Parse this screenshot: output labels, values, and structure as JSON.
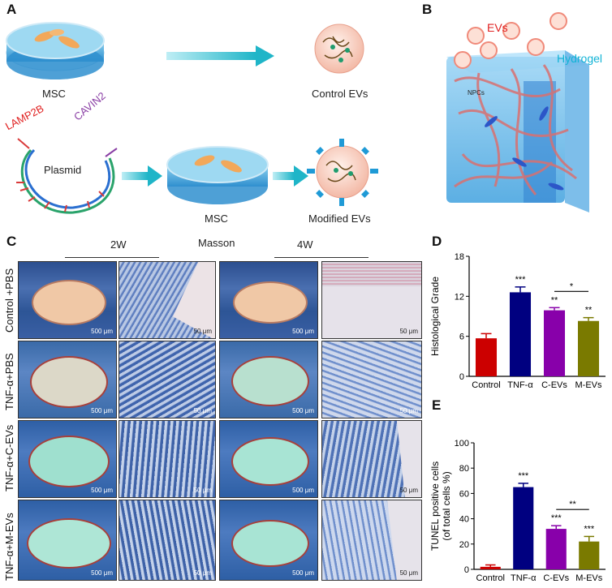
{
  "panel_a": {
    "label": "A",
    "msc_top": "MSC",
    "control_evs": "Control EVs",
    "lamp2b": "LAMP2B",
    "cavin2": "CAVIN2",
    "plasmid": "Plasmid",
    "msc_bottom": "MSC",
    "modified_evs": "Modified EVs"
  },
  "panel_b": {
    "label": "B",
    "evs": "EVs",
    "hydrogel": "Hydrogel",
    "npcs": "NPCs"
  },
  "panel_c": {
    "label": "C",
    "stain": "Masson",
    "week_left": "2W",
    "week_right": "4W",
    "rows": [
      "Control +PBS",
      "TNF-α+PBS",
      "TNF-α+C-EVs",
      "TNF-α+M-EVs"
    ],
    "scale_500": "500 μm",
    "scale_50": "50 μm"
  },
  "panel_d": {
    "label": "D"
  },
  "panel_e": {
    "label": "E"
  },
  "colors": {
    "control": "#cc0000",
    "tnf": "#000080",
    "cevs": "#8800aa",
    "mevs": "#7a7a00"
  },
  "chart_data": [
    {
      "type": "bar",
      "ylabel": "Histological Grade",
      "categories": [
        "Control",
        "TNF-α",
        "C-EVs",
        "M-EVs"
      ],
      "values": [
        5.7,
        12.6,
        9.9,
        8.3
      ],
      "errors": [
        0.7,
        0.8,
        0.4,
        0.5
      ],
      "ylim": [
        0,
        18
      ],
      "yticks": [
        0,
        6,
        12,
        18
      ],
      "significance": [
        "",
        "***",
        "**",
        "**"
      ],
      "brackets": [
        {
          "from": 2,
          "to": 3,
          "label": "*"
        }
      ]
    },
    {
      "type": "bar",
      "ylabel": "TUNEL positive cells (of total cells %)",
      "ylabel_lines": [
        "TUNEL positive cells",
        "(of total cells %)"
      ],
      "categories": [
        "Control",
        "TNF-α",
        "C-EVs",
        "M-EVs"
      ],
      "values": [
        2,
        65,
        32,
        22
      ],
      "errors": [
        1.5,
        3,
        2.5,
        4
      ],
      "ylim": [
        0,
        100
      ],
      "yticks": [
        0,
        20,
        40,
        60,
        80,
        100
      ],
      "significance": [
        "",
        "***",
        "***",
        "***"
      ],
      "brackets": [
        {
          "from": 2,
          "to": 3,
          "label": "**"
        }
      ]
    }
  ]
}
